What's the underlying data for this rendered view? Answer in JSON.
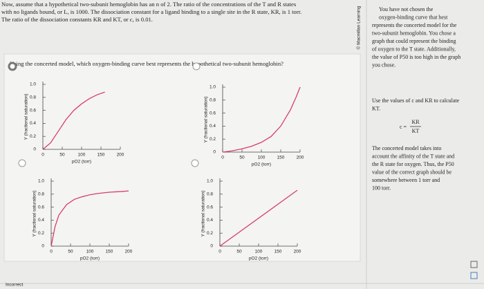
{
  "question": {
    "lines": [
      "Now, assume that a hypothetical two-subunit hemoglobin has an n of 2. The ratio of the concentrations of the T and R states",
      "with no ligands bound, or L, is 1000. The dissociation constant for a ligand binding to a single site in the R state, KR, is 1 torr.",
      "The ratio of the dissociation constants KR and KT, or c, is 0.01."
    ]
  },
  "prompt": "Using the concerted model, which oxygen-binding curve best represents the hypothetical two-subunit hemoglobin?",
  "options": [
    {
      "chart": {
        "type": "line",
        "xlabel": "pO2 (torr)",
        "ylabel": "Y (fractional saturation)",
        "color": "#d63c6c",
        "xlim": [
          0,
          200
        ],
        "ylim": [
          0,
          1
        ],
        "xticks": [
          0,
          50,
          100,
          150,
          200
        ],
        "yticks": [
          0,
          0.2,
          0.4,
          0.6,
          0.8,
          {
            "value": 1,
            "label": "1.0"
          }
        ],
        "x": [
          0,
          20,
          40,
          60,
          80,
          100,
          120,
          140,
          160
        ],
        "values": [
          0,
          0.1,
          0.28,
          0.46,
          0.6,
          0.7,
          0.78,
          0.84,
          0.88
        ]
      }
    },
    {
      "chart": {
        "type": "line",
        "xlabel": "pO2 (torr)",
        "ylabel": "Y (fractional saturation)",
        "color": "#d63c6c",
        "xlim": [
          0,
          200
        ],
        "ylim": [
          0,
          1
        ],
        "xticks": [
          0,
          50,
          100,
          150,
          200
        ],
        "yticks": [
          0,
          0.2,
          0.4,
          0.6,
          0.8,
          {
            "value": 1,
            "label": "1.0"
          }
        ],
        "x": [
          0,
          25,
          50,
          75,
          100,
          125,
          150,
          175,
          190,
          200
        ],
        "values": [
          0,
          0.02,
          0.05,
          0.09,
          0.15,
          0.24,
          0.4,
          0.65,
          0.85,
          1
        ]
      }
    },
    {
      "chart": {
        "type": "line",
        "xlabel": "pO2 (torr)",
        "ylabel": "Y (fractional saturation)",
        "color": "#d63c6c",
        "xlim": [
          0,
          200
        ],
        "ylim": [
          0,
          1
        ],
        "xticks": [
          0,
          50,
          100,
          150,
          200
        ],
        "yticks": [
          0,
          0.2,
          0.4,
          0.6,
          0.8,
          {
            "value": 1,
            "label": "1.0"
          }
        ],
        "x": [
          0,
          10,
          20,
          40,
          60,
          80,
          100,
          120,
          150,
          180,
          200
        ],
        "values": [
          0,
          0.3,
          0.48,
          0.64,
          0.72,
          0.76,
          0.79,
          0.81,
          0.83,
          0.84,
          0.85
        ]
      }
    },
    {
      "chart": {
        "type": "line",
        "xlabel": "pO2 (torr)",
        "ylabel": "Y (fractional saturation)",
        "color": "#d63c6c",
        "xlim": [
          0,
          200
        ],
        "ylim": [
          0,
          1
        ],
        "xticks": [
          0,
          50,
          100,
          150,
          200
        ],
        "yticks": [
          0,
          0.2,
          0.4,
          0.6,
          0.8,
          {
            "value": 1,
            "label": "1.0"
          }
        ],
        "x": [
          0,
          200
        ],
        "values": [
          0,
          0.86
        ]
      }
    }
  ],
  "feedback": {
    "lines1": [
      "You have not chosen the",
      "oxygen-binding curve that best",
      "represents the concerted model for the",
      "two-subunit hemoglobin. You chose a",
      "graph that could represent the binding",
      "of oxygen to the T state. Additionally,",
      "the value of P50 is too high in the graph",
      "you chose."
    ],
    "lines2": [
      "Use the values of c and KR to calculate",
      "KT."
    ],
    "equation": {
      "lhs": "c =",
      "numerator": "KR",
      "denominator": "KT"
    },
    "lines3": [
      "The concerted model takes into",
      "account the affinity of the T state and",
      "the R state for oxygen. Thus, the P50",
      "value of the correct graph should be",
      "somewhere between 1 torr and",
      "100 torr."
    ]
  },
  "copyright": "© Macmillan Learning",
  "status": "Incorrect"
}
